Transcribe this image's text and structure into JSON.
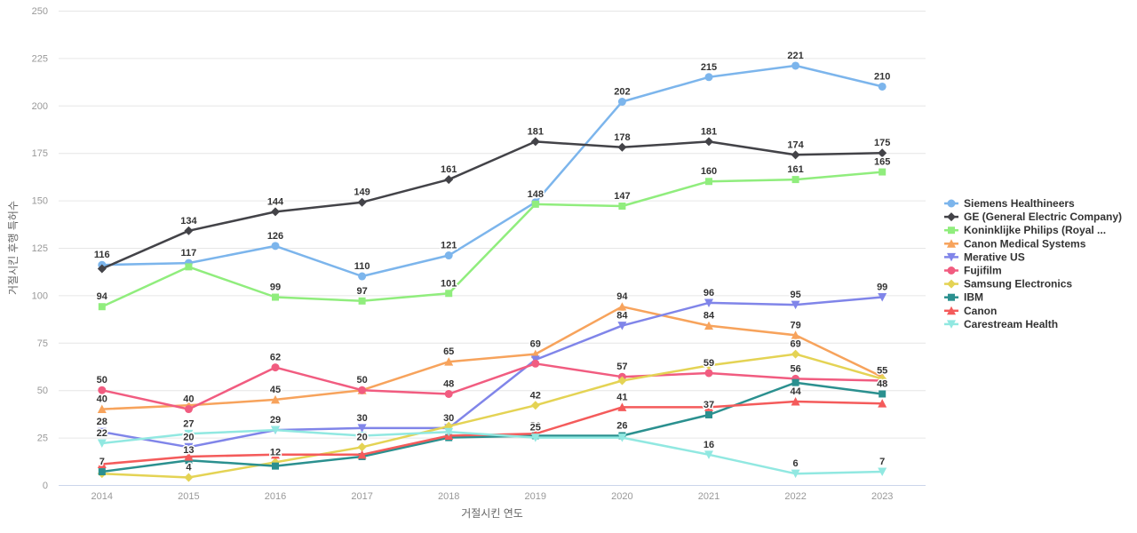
{
  "chart_data": {
    "type": "line",
    "title": "",
    "xlabel": "거절시킨 연도",
    "ylabel": "거절시킨 후행 특허수",
    "categories": [
      "2014",
      "2015",
      "2016",
      "2017",
      "2018",
      "2019",
      "2020",
      "2021",
      "2022",
      "2023"
    ],
    "y_ticks": [
      0,
      25,
      50,
      75,
      100,
      125,
      150,
      175,
      200,
      225,
      250
    ],
    "ylim": [
      0,
      250
    ],
    "grid": "horizontal",
    "legend_position": "right-middle",
    "gridline_color": "#e6e6e6",
    "x_axis_line_color": "#ccd6eb",
    "tick_label_color": "#999999",
    "data_label_color": "#333333",
    "legend_text_color": "#333333",
    "series": [
      {
        "name": "Siemens Healthineers",
        "color": "#7cb5ec",
        "marker": "circle",
        "values": [
          116,
          117,
          126,
          110,
          121,
          149,
          202,
          215,
          221,
          210
        ],
        "hidden_labels": [
          5
        ]
      },
      {
        "name": "GE (General Electric Company)",
        "color": "#434348",
        "marker": "diamond",
        "values": [
          114,
          134,
          144,
          149,
          161,
          181,
          178,
          181,
          174,
          175
        ],
        "hidden_labels": [
          0
        ]
      },
      {
        "name": "Koninklijke Philips (Royal ...",
        "color": "#90ed7d",
        "marker": "square",
        "values": [
          94,
          115,
          99,
          97,
          101,
          148,
          147,
          160,
          161,
          165
        ],
        "hidden_labels": [
          1
        ]
      },
      {
        "name": "Canon Medical Systems",
        "color": "#f7a35c",
        "marker": "triangle",
        "values": [
          40,
          42,
          45,
          50,
          65,
          69,
          94,
          84,
          79,
          57
        ],
        "hidden_labels": [
          1,
          3,
          9
        ]
      },
      {
        "name": "Merative US",
        "color": "#8085e9",
        "marker": "triangle-down",
        "values": [
          28,
          20,
          29,
          30,
          30,
          66,
          84,
          96,
          95,
          99
        ],
        "hidden_labels": [
          5
        ]
      },
      {
        "name": "Fujifilm",
        "color": "#f15c80",
        "marker": "circle",
        "values": [
          50,
          40,
          62,
          50,
          48,
          64,
          57,
          59,
          56,
          55
        ],
        "hidden_labels": [
          5
        ]
      },
      {
        "name": "Samsung Electronics",
        "color": "#e4d354",
        "marker": "diamond",
        "values": [
          6,
          4,
          12,
          20,
          31,
          42,
          55,
          63,
          69,
          56
        ],
        "hidden_labels": [
          0,
          4,
          6,
          7,
          9
        ]
      },
      {
        "name": "IBM",
        "color": "#2b908f",
        "marker": "square",
        "values": [
          7,
          13,
          10,
          15,
          25,
          26,
          26,
          37,
          54,
          48
        ],
        "hidden_labels": [
          2,
          3,
          4,
          8
        ]
      },
      {
        "name": "Canon",
        "color": "#f45b5b",
        "marker": "triangle",
        "values": [
          11,
          15,
          16,
          16,
          26,
          27,
          41,
          41,
          44,
          43
        ],
        "hidden_labels": [
          0,
          1,
          2,
          3,
          4,
          5,
          7,
          9
        ]
      },
      {
        "name": "Carestream Health",
        "color": "#91e8e1",
        "marker": "triangle-down",
        "values": [
          22,
          27,
          29,
          26,
          28,
          25,
          25,
          16,
          6,
          7
        ],
        "hidden_labels": [
          2,
          3,
          4,
          6
        ]
      }
    ]
  }
}
